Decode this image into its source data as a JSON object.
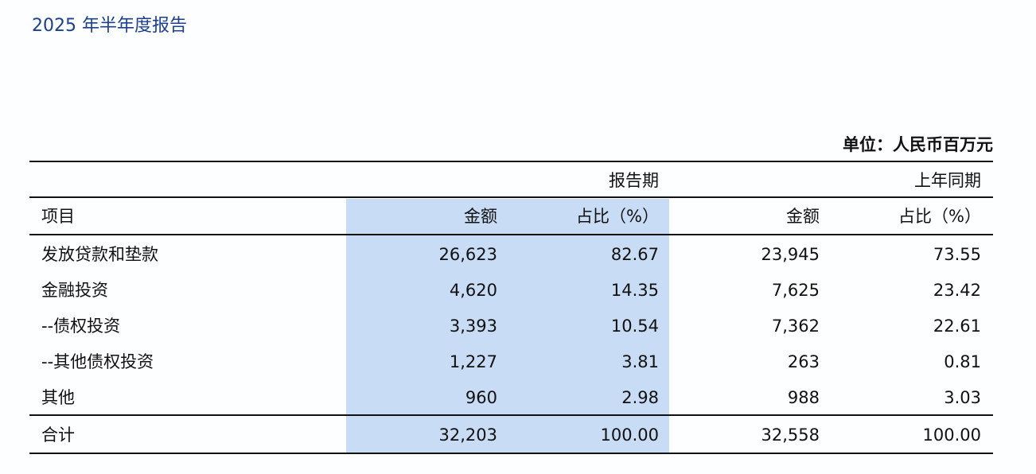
{
  "title": "2025 年半年度报告",
  "unit": "单位：人民币百万元",
  "header": {
    "period_current": "报告期",
    "period_prior": "上年同期",
    "item": "项目",
    "amount": "金额",
    "share": "占比（%）"
  },
  "rows": [
    {
      "item": "发放贷款和垫款",
      "cur_amount": "26,623",
      "cur_share": "82.67",
      "prior_amount": "23,945",
      "prior_share": "73.55"
    },
    {
      "item": "金融投资",
      "cur_amount": "4,620",
      "cur_share": "14.35",
      "prior_amount": "7,625",
      "prior_share": "23.42"
    },
    {
      "item": "--债权投资",
      "cur_amount": "3,393",
      "cur_share": "10.54",
      "prior_amount": "7,362",
      "prior_share": "22.61"
    },
    {
      "item": "--其他债权投资",
      "cur_amount": "1,227",
      "cur_share": "3.81",
      "prior_amount": "263",
      "prior_share": "0.81"
    },
    {
      "item": "其他",
      "cur_amount": "960",
      "cur_share": "2.98",
      "prior_amount": "988",
      "prior_share": "3.03"
    },
    {
      "item": "合计",
      "cur_amount": "32,203",
      "cur_share": "100.00",
      "prior_amount": "32,558",
      "prior_share": "100.00"
    }
  ],
  "colors": {
    "title": "#1d3f8f",
    "highlight": "#c9dcf5"
  }
}
